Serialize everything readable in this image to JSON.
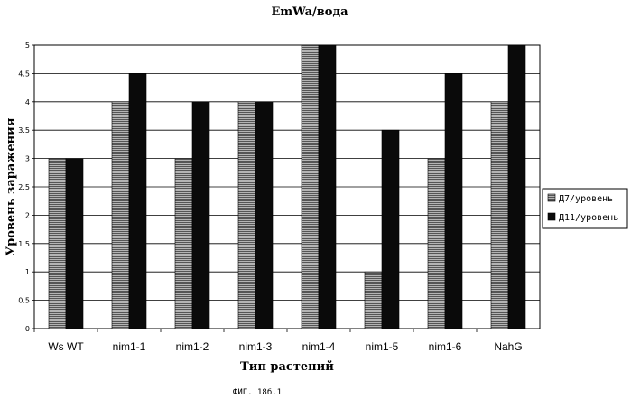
{
  "chart_data": {
    "type": "bar",
    "title": "EmWa/вода",
    "xlabel": "Тип растений",
    "ylabel": "Уровень заражения",
    "categories": [
      "Ws WT",
      "nim1-1",
      "nim1-2",
      "nim1-3",
      "nim1-4",
      "nim1-5",
      "nim1-6",
      "NahG"
    ],
    "series": [
      {
        "name": "Д7/уровень",
        "values": [
          3,
          4,
          3,
          4,
          5,
          1,
          3,
          4
        ],
        "color": "#8c8c8c"
      },
      {
        "name": "Д11/уровень",
        "values": [
          3,
          4.5,
          4,
          4,
          5,
          3.5,
          4.5,
          5
        ],
        "color": "#0a0a0a"
      }
    ],
    "ylim": [
      0,
      5
    ],
    "yticks": [
      "0",
      "0.5",
      "1",
      "1.5",
      "2",
      "2.5",
      "3",
      "3.5",
      "4",
      "4.5",
      "5"
    ],
    "grid": true,
    "legend_position": "right"
  },
  "caption": "ФИГ. 18б.1"
}
